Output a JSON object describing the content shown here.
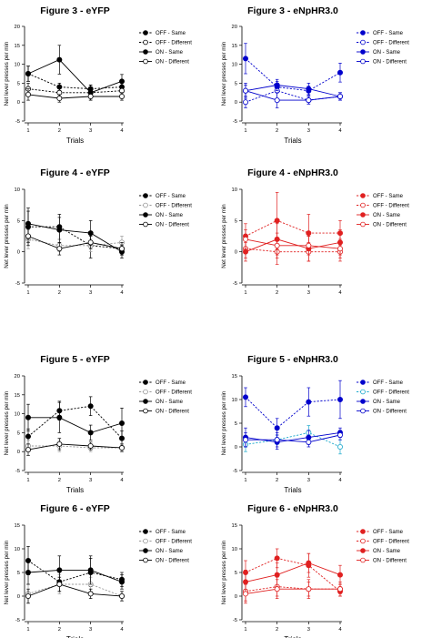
{
  "chart_data": [
    {
      "type": "line",
      "title": "Figure 3 - eYFP",
      "xlabel": "Trials",
      "ylabel": "Net lever presses per min",
      "x": [
        1,
        2,
        3,
        4
      ],
      "xlim": [
        1,
        4
      ],
      "ylim": [
        -5,
        20
      ],
      "yticks": [
        -5,
        0,
        5,
        10,
        15,
        20
      ],
      "legend_position": "right",
      "series": [
        {
          "name": "OFF - Same",
          "values": [
            7.5,
            4,
            3.5,
            4
          ],
          "errors": [
            2,
            1,
            1,
            1.5
          ],
          "color": "#000000",
          "filled": true,
          "dashed": true
        },
        {
          "name": "OFF - Different",
          "values": [
            3.5,
            2.5,
            2.5,
            3
          ],
          "errors": [
            1.5,
            1,
            1,
            1
          ],
          "color": "#000000",
          "filled": false,
          "dashed": true
        },
        {
          "name": "ON - Same",
          "values": [
            7.5,
            11.2,
            2.5,
            5.5
          ],
          "errors": [
            2,
            3.8,
            2,
            1.8
          ],
          "color": "#000000",
          "filled": true,
          "dashed": false
        },
        {
          "name": "ON - Different",
          "values": [
            2,
            1,
            1.5,
            1.5
          ],
          "errors": [
            1.5,
            1,
            1,
            1
          ],
          "color": "#000000",
          "filled": false,
          "dashed": false
        }
      ]
    },
    {
      "type": "line",
      "title": "Figure 3 - eNpHR3.0",
      "xlabel": "Trials",
      "ylabel": "Net lever presses per min",
      "x": [
        1,
        2,
        3,
        4
      ],
      "xlim": [
        1,
        4
      ],
      "ylim": [
        -5,
        20
      ],
      "yticks": [
        -5,
        0,
        5,
        10,
        15,
        20
      ],
      "legend_position": "right",
      "series": [
        {
          "name": "OFF - Same",
          "values": [
            11.5,
            4,
            3,
            7.8
          ],
          "errors": [
            4,
            1.5,
            1.2,
            2.5
          ],
          "color": "#0000cc",
          "filled": true,
          "dashed": true
        },
        {
          "name": "OFF - Different",
          "values": [
            0,
            3,
            0.5,
            1.5
          ],
          "errors": [
            1.5,
            2,
            1,
            1
          ],
          "color": "#0000cc",
          "filled": false,
          "dashed": true
        },
        {
          "name": "ON - Same",
          "values": [
            3,
            4.5,
            3.5,
            1.5
          ],
          "errors": [
            1.5,
            1.5,
            1.5,
            1
          ],
          "color": "#0000cc",
          "filled": true,
          "dashed": false
        },
        {
          "name": "ON - Different",
          "values": [
            3,
            0.5,
            0.5,
            1.5
          ],
          "errors": [
            2,
            2,
            1,
            1
          ],
          "color": "#0000cc",
          "filled": false,
          "dashed": false
        }
      ]
    },
    {
      "type": "line",
      "title": "Figure 4 - eYFP",
      "xlabel": "",
      "ylabel": "Net lever presses per min",
      "x": [
        1,
        2,
        3,
        4
      ],
      "xlim": [
        1,
        4
      ],
      "ylim": [
        -5,
        10
      ],
      "yticks": [
        -5,
        0,
        5,
        10
      ],
      "legend_position": "right",
      "series": [
        {
          "name": "OFF - Same",
          "values": [
            4,
            4,
            1,
            0.5
          ],
          "errors": [
            2.5,
            2,
            2,
            1
          ],
          "color": "#000000",
          "filled": true,
          "dashed": true
        },
        {
          "name": "OFF - Different",
          "values": [
            2,
            1,
            1,
            1.5
          ],
          "errors": [
            1.5,
            1,
            1,
            1
          ],
          "color": "#999999",
          "filled": false,
          "dashed": true
        },
        {
          "name": "ON - Same",
          "values": [
            4.5,
            3.5,
            3,
            0
          ],
          "errors": [
            2.5,
            2,
            2,
            1
          ],
          "color": "#000000",
          "filled": true,
          "dashed": false
        },
        {
          "name": "ON - Different",
          "values": [
            2.5,
            0.5,
            1.5,
            0.5
          ],
          "errors": [
            1.5,
            1,
            1,
            1
          ],
          "color": "#000000",
          "filled": false,
          "dashed": false
        }
      ]
    },
    {
      "type": "line",
      "title": "Figure 4 - eNpHR3.0",
      "xlabel": "",
      "ylabel": "Net lever presses per min",
      "x": [
        1,
        2,
        3,
        4
      ],
      "xlim": [
        1,
        4
      ],
      "ylim": [
        -5,
        10
      ],
      "yticks": [
        -5,
        0,
        5,
        10
      ],
      "legend_position": "right",
      "series": [
        {
          "name": "OFF - Same",
          "values": [
            2.5,
            5,
            3,
            3
          ],
          "errors": [
            2,
            4.5,
            3,
            2
          ],
          "color": "#e02020",
          "filled": true,
          "dashed": true
        },
        {
          "name": "OFF - Different",
          "values": [
            0.5,
            0,
            0,
            0
          ],
          "errors": [
            1.5,
            2,
            1.5,
            1.5
          ],
          "color": "#e02020",
          "filled": false,
          "dashed": true
        },
        {
          "name": "ON - Same",
          "values": [
            0,
            2,
            0.5,
            1.5
          ],
          "errors": [
            1.5,
            2.5,
            2,
            2
          ],
          "color": "#e02020",
          "filled": true,
          "dashed": false
        },
        {
          "name": "ON - Different",
          "values": [
            2,
            1,
            1,
            0.5
          ],
          "errors": [
            1.5,
            2,
            1.5,
            1.5
          ],
          "color": "#e02020",
          "filled": false,
          "dashed": false
        }
      ]
    },
    {
      "type": "line",
      "title": "Figure 5 - eYFP",
      "xlabel": "Trials",
      "ylabel": "Net lever presses per min",
      "x": [
        1,
        2,
        3,
        4
      ],
      "xlim": [
        1,
        4
      ],
      "ylim": [
        -5,
        20
      ],
      "yticks": [
        -5,
        0,
        5,
        10,
        15,
        20
      ],
      "legend_position": "right",
      "series": [
        {
          "name": "OFF - Same",
          "values": [
            4,
            10.8,
            12,
            3.5
          ],
          "errors": [
            2,
            2.5,
            2.5,
            2
          ],
          "color": "#000000",
          "filled": true,
          "dashed": true
        },
        {
          "name": "OFF - Different",
          "values": [
            1.5,
            1.5,
            1,
            1
          ],
          "errors": [
            1.5,
            1.5,
            1,
            1
          ],
          "color": "#999999",
          "filled": false,
          "dashed": true
        },
        {
          "name": "ON - Same",
          "values": [
            9,
            9,
            5,
            7.5
          ],
          "errors": [
            3.5,
            4,
            2,
            4
          ],
          "color": "#000000",
          "filled": true,
          "dashed": false
        },
        {
          "name": "ON - Different",
          "values": [
            0.5,
            2,
            1.5,
            1
          ],
          "errors": [
            1.5,
            1.5,
            1,
            1
          ],
          "color": "#000000",
          "filled": false,
          "dashed": false
        }
      ]
    },
    {
      "type": "line",
      "title": "Figure 5 - eNpHR3.0",
      "xlabel": "Trials",
      "ylabel": "Net lever presses per min",
      "x": [
        1,
        2,
        3,
        4
      ],
      "xlim": [
        1,
        4
      ],
      "ylim": [
        -5,
        15
      ],
      "yticks": [
        -5,
        0,
        5,
        10,
        15
      ],
      "legend_position": "right",
      "series": [
        {
          "name": "OFF - Same",
          "values": [
            10.5,
            4,
            9.5,
            10
          ],
          "errors": [
            2,
            2,
            3,
            4
          ],
          "color": "#0000cc",
          "filled": true,
          "dashed": true
        },
        {
          "name": "OFF - Different",
          "values": [
            0.5,
            1.5,
            3,
            0
          ],
          "errors": [
            1.5,
            1,
            1.5,
            1.5
          ],
          "color": "#1aa8cc",
          "filled": false,
          "dashed": true
        },
        {
          "name": "ON - Same",
          "values": [
            2,
            1,
            2,
            3
          ],
          "errors": [
            2,
            1.5,
            1.5,
            1
          ],
          "color": "#0000cc",
          "filled": true,
          "dashed": false
        },
        {
          "name": "ON - Different",
          "values": [
            1.5,
            1.5,
            1,
            2.5
          ],
          "errors": [
            1.5,
            1.5,
            1,
            1
          ],
          "color": "#0000cc",
          "filled": false,
          "dashed": false
        }
      ]
    },
    {
      "type": "line",
      "title": "Figure 6 - eYFP",
      "xlabel": "Trials",
      "ylabel": "Net lever presses per min",
      "x": [
        1,
        2,
        3,
        4
      ],
      "xlim": [
        1,
        4
      ],
      "ylim": [
        -5,
        15
      ],
      "yticks": [
        -5,
        0,
        5,
        10,
        15
      ],
      "legend_position": "right",
      "series": [
        {
          "name": "OFF - Same",
          "values": [
            7.5,
            3,
            5,
            3.5
          ],
          "errors": [
            3,
            2,
            3,
            1.5
          ],
          "color": "#000000",
          "filled": true,
          "dashed": true
        },
        {
          "name": "OFF - Different",
          "values": [
            0.5,
            2.5,
            2.5,
            0
          ],
          "errors": [
            2,
            2,
            1.5,
            1
          ],
          "color": "#999999",
          "filled": false,
          "dashed": true
        },
        {
          "name": "ON - Same",
          "values": [
            5,
            5.5,
            5.5,
            3
          ],
          "errors": [
            2.5,
            3,
            3,
            1.5
          ],
          "color": "#000000",
          "filled": true,
          "dashed": false
        },
        {
          "name": "ON - Different",
          "values": [
            0,
            2.5,
            0.5,
            0
          ],
          "errors": [
            1.5,
            1.5,
            1,
            1
          ],
          "color": "#000000",
          "filled": false,
          "dashed": false
        }
      ]
    },
    {
      "type": "line",
      "title": "Figure 6 - eNpHR3.0",
      "xlabel": "Trials",
      "ylabel": "Net lever presses per min",
      "x": [
        1,
        2,
        3,
        4
      ],
      "xlim": [
        1,
        4
      ],
      "ylim": [
        -5,
        15
      ],
      "yticks": [
        -5,
        0,
        5,
        10,
        15
      ],
      "legend_position": "right",
      "series": [
        {
          "name": "OFF - Same",
          "values": [
            5,
            8,
            6.5,
            1
          ],
          "errors": [
            2.5,
            2,
            2.5,
            1
          ],
          "color": "#e02020",
          "filled": true,
          "dashed": true
        },
        {
          "name": "OFF - Different",
          "values": [
            1,
            2,
            1.5,
            1.5
          ],
          "errors": [
            2,
            2,
            2,
            1.5
          ],
          "color": "#e02020",
          "filled": false,
          "dashed": true
        },
        {
          "name": "ON - Same",
          "values": [
            3,
            4.5,
            7,
            4.5
          ],
          "errors": [
            2.5,
            2.5,
            2,
            2
          ],
          "color": "#e02020",
          "filled": true,
          "dashed": false
        },
        {
          "name": "ON - Different",
          "values": [
            0.5,
            1.5,
            1.5,
            1.5
          ],
          "errors": [
            2,
            2,
            1.5,
            1
          ],
          "color": "#e02020",
          "filled": false,
          "dashed": false
        }
      ]
    }
  ]
}
